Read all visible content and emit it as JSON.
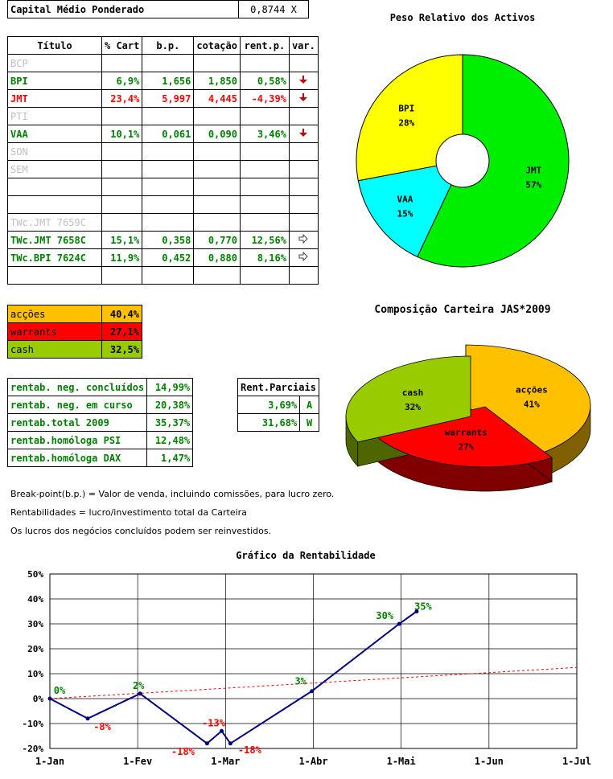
{
  "header": {
    "label": "Capital Médio Ponderado",
    "value": "0,8744 X"
  },
  "portfolio": {
    "columns": [
      "Título",
      "% Cart",
      "b.p.",
      "cotação",
      "rent.p.",
      "var."
    ],
    "rows": [
      {
        "name": "BCP",
        "cart": "",
        "bp": "",
        "cot": "",
        "rent": "",
        "var": "",
        "style": "grey"
      },
      {
        "name": "BPI",
        "cart": "6,9%",
        "bp": "1,656",
        "cot": "1,850",
        "rent": "0,58%",
        "var": "down",
        "style": "green"
      },
      {
        "name": "JMT",
        "cart": "23,4%",
        "bp": "5,997",
        "cot": "4,445",
        "rent": "-4,39%",
        "var": "down",
        "style": "red"
      },
      {
        "name": "PTI",
        "cart": "",
        "bp": "",
        "cot": "",
        "rent": "",
        "var": "",
        "style": "grey"
      },
      {
        "name": "VAA",
        "cart": "10,1%",
        "bp": "0,061",
        "cot": "0,090",
        "rent": "3,46%",
        "var": "down",
        "style": "green"
      },
      {
        "name": "SON",
        "cart": "",
        "bp": "",
        "cot": "",
        "rent": "",
        "var": "",
        "style": "grey"
      },
      {
        "name": "SEM",
        "cart": "",
        "bp": "",
        "cot": "",
        "rent": "",
        "var": "",
        "style": "grey"
      },
      {
        "name": "",
        "cart": "",
        "bp": "",
        "cot": "",
        "rent": "",
        "var": "",
        "style": "grey"
      },
      {
        "name": "",
        "cart": "",
        "bp": "",
        "cot": "",
        "rent": "",
        "var": "",
        "style": "grey"
      },
      {
        "name": "TWc.JMT 7659C",
        "cart": "",
        "bp": "",
        "cot": "",
        "rent": "",
        "var": "",
        "style": "grey"
      },
      {
        "name": "TWc.JMT 7658C",
        "cart": "15,1%",
        "bp": "0,358",
        "cot": "0,770",
        "rent": "12,56%",
        "var": "right",
        "style": "green"
      },
      {
        "name": "TWc.BPI 7624C",
        "cart": "11,9%",
        "bp": "0,452",
        "cot": "0,880",
        "rent": "8,16%",
        "var": "right",
        "style": "green"
      },
      {
        "name": "",
        "cart": "",
        "bp": "",
        "cot": "",
        "rent": "",
        "var": "",
        "style": "grey"
      }
    ]
  },
  "composition": [
    {
      "label": "acções",
      "value": "40,4%",
      "color": "#ffc000"
    },
    {
      "label": "warrants",
      "value": "27,1%",
      "color": "#ff0000"
    },
    {
      "label": "cash",
      "value": "32,5%",
      "color": "#99cc00"
    }
  ],
  "returns": [
    {
      "label": "rentab. neg. concluídos",
      "value": "14,99%"
    },
    {
      "label": "rentab. neg. em curso",
      "value": "20,38%"
    },
    {
      "label": "rentab.total 2009",
      "value": "35,37%"
    },
    {
      "label": "rentab.homóloga PSI",
      "value": "12,48%"
    },
    {
      "label": "rentab.homóloga DAX",
      "value": "1,47%"
    }
  ],
  "partial": {
    "title": "Rent.Parciais",
    "rows": [
      {
        "value": "3,69%",
        "tag": "A"
      },
      {
        "value": "31,68%",
        "tag": "W"
      }
    ]
  },
  "notes": [
    "Break-point(b.p.) = Valor de venda, incluindo comissões, para lucro zero.",
    "Rentabilidades = lucro/investimento total da Carteira",
    "Os lucros dos negócios concluídos podem ser reinvestidos."
  ],
  "chart_data": [
    {
      "type": "pie",
      "title": "Peso Relativo dos Activos",
      "donut": true,
      "slices": [
        {
          "label": "JMT",
          "value": 57,
          "color": "#00ee00"
        },
        {
          "label": "VAA",
          "value": 15,
          "color": "#00ffff"
        },
        {
          "label": "BPI",
          "value": 28,
          "color": "#ffff00"
        }
      ]
    },
    {
      "type": "pie",
      "title": "Composição Carteira JAS*2009",
      "three_d": true,
      "slices": [
        {
          "label": "acções",
          "value": 41,
          "color": "#ffc000",
          "side": "#806000"
        },
        {
          "label": "warrants",
          "value": 27,
          "color": "#ff0000",
          "side": "#800000"
        },
        {
          "label": "cash",
          "value": 32,
          "color": "#99cc00",
          "side": "#4d6600"
        }
      ]
    },
    {
      "type": "line",
      "title": "Gráfico da Rentabilidade",
      "x_ticks": [
        "1-Jan",
        "1-Fev",
        "1-Mar",
        "1-Abr",
        "1-Mai",
        "1-Jun",
        "1-Jul"
      ],
      "y_ticks": [
        "50%",
        "40%",
        "30%",
        "20%",
        "10%",
        "0%",
        "-10%",
        "-20%"
      ],
      "ylim": [
        -20,
        50
      ],
      "series": [
        {
          "points": [
            {
              "x": "2009-01-01",
              "y": 0,
              "label": "0%"
            },
            {
              "x": "2009-01-14",
              "y": -8,
              "label": "-8%"
            },
            {
              "x": "2009-02-01",
              "y": 2,
              "label": "2%"
            },
            {
              "x": "2009-02-24",
              "y": -18,
              "label": "-18%"
            },
            {
              "x": "2009-03-01",
              "y": -13,
              "label": "-13%"
            },
            {
              "x": "2009-03-04",
              "y": -18,
              "label": "-18%"
            },
            {
              "x": "2009-04-01",
              "y": 3,
              "label": "3%"
            },
            {
              "x": "2009-05-01",
              "y": 30,
              "label": "30%"
            },
            {
              "x": "2009-05-07",
              "y": 35,
              "label": "35%"
            }
          ],
          "color": "#000080"
        },
        {
          "trend": true,
          "points": [
            {
              "x": "2009-01-01",
              "y": 0
            },
            {
              "x": "2009-07-01",
              "y": 12.5
            }
          ],
          "color": "#ff0000"
        }
      ],
      "grid": true
    }
  ]
}
